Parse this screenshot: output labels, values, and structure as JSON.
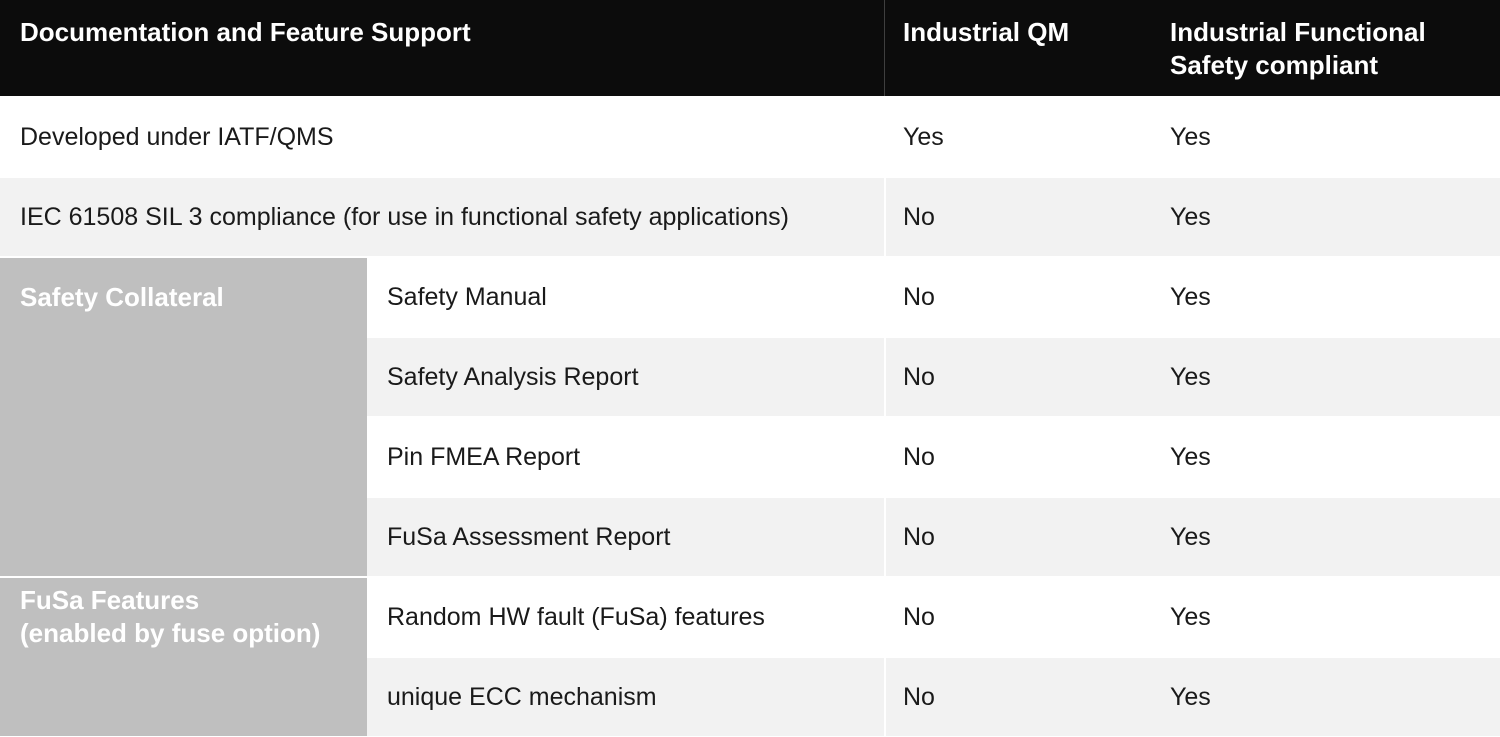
{
  "theme": {
    "header_bg": "#0c0c0c",
    "header_text": "#ffffff",
    "header_divider": "#3f3f3f",
    "row_white": "#ffffff",
    "row_alt": "#f2f2f2",
    "group_cell_bg": "#bfbfbf",
    "group_cell_text": "#ffffff",
    "body_text": "#1a1a1a"
  },
  "header": {
    "feature_col": "Documentation and Feature Support",
    "qm_col": "Industrial QM",
    "fusa_col": "Industrial Functional Safety compliant"
  },
  "rows": [
    {
      "feature": "Developed under IATF/QMS",
      "industrial_qm": "Yes",
      "industrial_fusa": "Yes"
    },
    {
      "feature": "IEC 61508 SIL 3 compliance (for use in functional safety applications)",
      "industrial_qm": "No",
      "industrial_fusa": "Yes"
    }
  ],
  "groups": [
    {
      "label": "Safety Collateral",
      "label_lines": [
        "Safety Collateral"
      ],
      "rows": [
        {
          "feature": "Safety Manual",
          "industrial_qm": "No",
          "industrial_fusa": "Yes"
        },
        {
          "feature": "Safety Analysis Report",
          "industrial_qm": "No",
          "industrial_fusa": "Yes"
        },
        {
          "feature": "Pin FMEA Report",
          "industrial_qm": "No",
          "industrial_fusa": "Yes"
        },
        {
          "feature": "FuSa Assessment Report",
          "industrial_qm": "No",
          "industrial_fusa": "Yes"
        }
      ]
    },
    {
      "label": "FuSa Features (enabled by fuse option)",
      "label_lines": [
        "FuSa Features",
        "(enabled by fuse option)"
      ],
      "rows": [
        {
          "feature": "Random HW fault (FuSa) features",
          "industrial_qm": "No",
          "industrial_fusa": "Yes"
        },
        {
          "feature": "unique ECC mechanism",
          "industrial_qm": "No",
          "industrial_fusa": "Yes"
        }
      ]
    }
  ]
}
